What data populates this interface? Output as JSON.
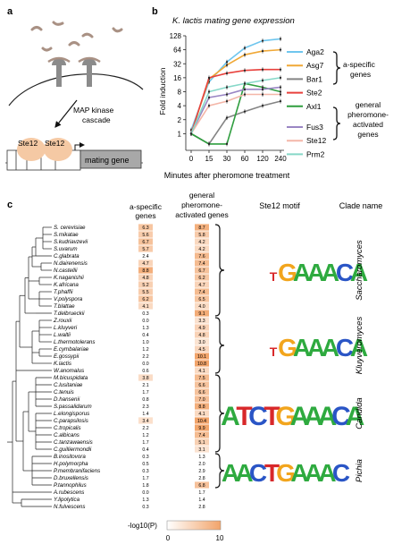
{
  "panels": {
    "a": "a",
    "b": "b",
    "c": "c"
  },
  "panel_a": {
    "arrow_label_1": "MAP kinase",
    "arrow_label_2": "cascade",
    "ste12_1": "Ste12",
    "ste12_2": "Ste12",
    "gene_label": "mating gene"
  },
  "panel_b": {
    "title": "K. lactis mating gene expression",
    "group1_1": "a-specific",
    "group1_2": "genes",
    "group2_1": "general",
    "group2_2": "pheromone-",
    "group2_3": "activated",
    "group2_4": "genes"
  },
  "chart_data": {
    "type": "line",
    "title": "K. lactis mating gene expression",
    "xlabel": "Minutes after pheromone treatment",
    "ylabel": "Fold induction",
    "x": [
      "0",
      "15",
      "30",
      "60",
      "120",
      "240"
    ],
    "yscale": "log2",
    "yticks": [
      "1",
      "2",
      "4",
      "8",
      "16",
      "32",
      "64",
      "128"
    ],
    "ylim": [
      0.5,
      128
    ],
    "series": [
      {
        "name": "Aga2",
        "color": "#6fc6ee",
        "values": [
          1.2,
          13,
          35,
          70,
          100,
          110
        ]
      },
      {
        "name": "Asg7",
        "color": "#f0a836",
        "values": [
          1.0,
          15,
          30,
          50,
          60,
          64
        ]
      },
      {
        "name": "Bar1",
        "color": "#848484",
        "values": [
          1.0,
          0.6,
          2.2,
          3,
          4,
          5
        ]
      },
      {
        "name": "Ste2",
        "color": "#e8413c",
        "values": [
          1.0,
          16,
          20,
          23,
          24,
          24
        ]
      },
      {
        "name": "Axl1",
        "color": "#2f9e3f",
        "values": [
          1.0,
          0.6,
          0.6,
          12,
          10,
          8
        ]
      },
      {
        "name": "Fus3",
        "color": "#9a86c4",
        "values": [
          1.0,
          6,
          7,
          9,
          9,
          10
        ]
      },
      {
        "name": "Ste12",
        "color": "#f4b6a8",
        "values": [
          1.0,
          4,
          5,
          7,
          7,
          7
        ]
      },
      {
        "name": "Prm2",
        "color": "#86d8c8",
        "values": [
          1.0,
          8,
          10,
          12,
          14,
          16
        ]
      }
    ]
  },
  "panel_c": {
    "col_a_1": "a-specific",
    "col_a_2": "genes",
    "col_g_1": "general",
    "col_g_2": "pheromone-",
    "col_g_3": "activated genes",
    "col_motif": "Ste12 motif",
    "col_clade": "Clade name",
    "clades": [
      "Saccharomyces",
      "Kluyveromyces",
      "Candida",
      "Pichia"
    ],
    "motifs": [
      "TGAAACA",
      "TGAAACA",
      "ATCTGAAACA",
      "AACTGAAAC"
    ],
    "colorbar_label": "-log10(P)",
    "colorbar_min": "0",
    "colorbar_max": "10",
    "species": [
      {
        "name": "S. cerevisiae",
        "a": "6.3",
        "g": "8.7"
      },
      {
        "name": "S.mikatae",
        "a": "5.6",
        "g": "5.8"
      },
      {
        "name": "S.kudriavzevii",
        "a": "6.7",
        "g": "4.2"
      },
      {
        "name": "S.uvarum",
        "a": "5.7",
        "g": "4.2"
      },
      {
        "name": "C.glabrata",
        "a": "2.4",
        "g": "7.6"
      },
      {
        "name": "N.dairenensis",
        "a": "4.7",
        "g": "7.4"
      },
      {
        "name": "N.castellii",
        "a": "8.8",
        "g": "6.7"
      },
      {
        "name": "K.naganishii",
        "a": "4.8",
        "g": "6.2"
      },
      {
        "name": "K.africana",
        "a": "5.2",
        "g": "4.7"
      },
      {
        "name": "T.phaffii",
        "a": "5.5",
        "g": "7.4"
      },
      {
        "name": "V.polyspora",
        "a": "6.2",
        "g": "6.5"
      },
      {
        "name": "T.blattae",
        "a": "4.1",
        "g": "4.0"
      },
      {
        "name": "T.delbrueckii",
        "a": "0.3",
        "g": "9.1"
      },
      {
        "name": "Z.rouxii",
        "a": "0.0",
        "g": "3.3"
      },
      {
        "name": "L.kluyveri",
        "a": "1.3",
        "g": "4.9"
      },
      {
        "name": "L.waltii",
        "a": "0.4",
        "g": "4.8"
      },
      {
        "name": "L.thermotolerans",
        "a": "1.0",
        "g": "3.0"
      },
      {
        "name": "E.cymbalariae",
        "a": "1.2",
        "g": "4.5"
      },
      {
        "name": "E.gossypii",
        "a": "2.2",
        "g": "10.1"
      },
      {
        "name": "K.lactis",
        "a": "0.0",
        "g": "10.8"
      },
      {
        "name": "W.anomalus",
        "a": "0.6",
        "g": "4.1"
      },
      {
        "name": "M.bicuspidata",
        "a": "3.8",
        "g": "7.5"
      },
      {
        "name": "C.lusitaniae",
        "a": "2.1",
        "g": "6.6"
      },
      {
        "name": "C.tenuis",
        "a": "1.7",
        "g": "6.6"
      },
      {
        "name": "D.hansenii",
        "a": "0.8",
        "g": "7.0"
      },
      {
        "name": "S.passalidarum",
        "a": "2.3",
        "g": "8.8"
      },
      {
        "name": "L.elongisporus",
        "a": "1.4",
        "g": "4.1"
      },
      {
        "name": "C.parapsilosis",
        "a": "3.4",
        "g": "10.4"
      },
      {
        "name": "C.tropicalis",
        "a": "2.2",
        "g": "9.9"
      },
      {
        "name": "C.albicans",
        "a": "1.2",
        "g": "7.4"
      },
      {
        "name": "C.tanzawaensis",
        "a": "1.7",
        "g": "5.1"
      },
      {
        "name": "C.guilliermondii",
        "a": "0.4",
        "g": "3.1"
      },
      {
        "name": "B.inositovora",
        "a": "0.3",
        "g": "1.3"
      },
      {
        "name": "H.polymorpha",
        "a": "0.5",
        "g": "2.0"
      },
      {
        "name": "P.membranifaciens",
        "a": "0.3",
        "g": "2.9"
      },
      {
        "name": "D.bruxellensis",
        "a": "1.7",
        "g": "2.8"
      },
      {
        "name": "P.tannophilus",
        "a": "1.8",
        "g": "6.8"
      },
      {
        "name": "A.rubescens",
        "a": "0.0",
        "g": "1.7"
      },
      {
        "name": "Y.lipolytica",
        "a": "1.3",
        "g": "1.4"
      },
      {
        "name": "N.fulvescens",
        "a": "0.3",
        "g": "2.8"
      }
    ]
  },
  "colors": {
    "accent": "#f6c7a4",
    "ste12_fill": "#f5c9a4",
    "gene_fill": "#a8a8a8",
    "hook": "#a99184"
  }
}
